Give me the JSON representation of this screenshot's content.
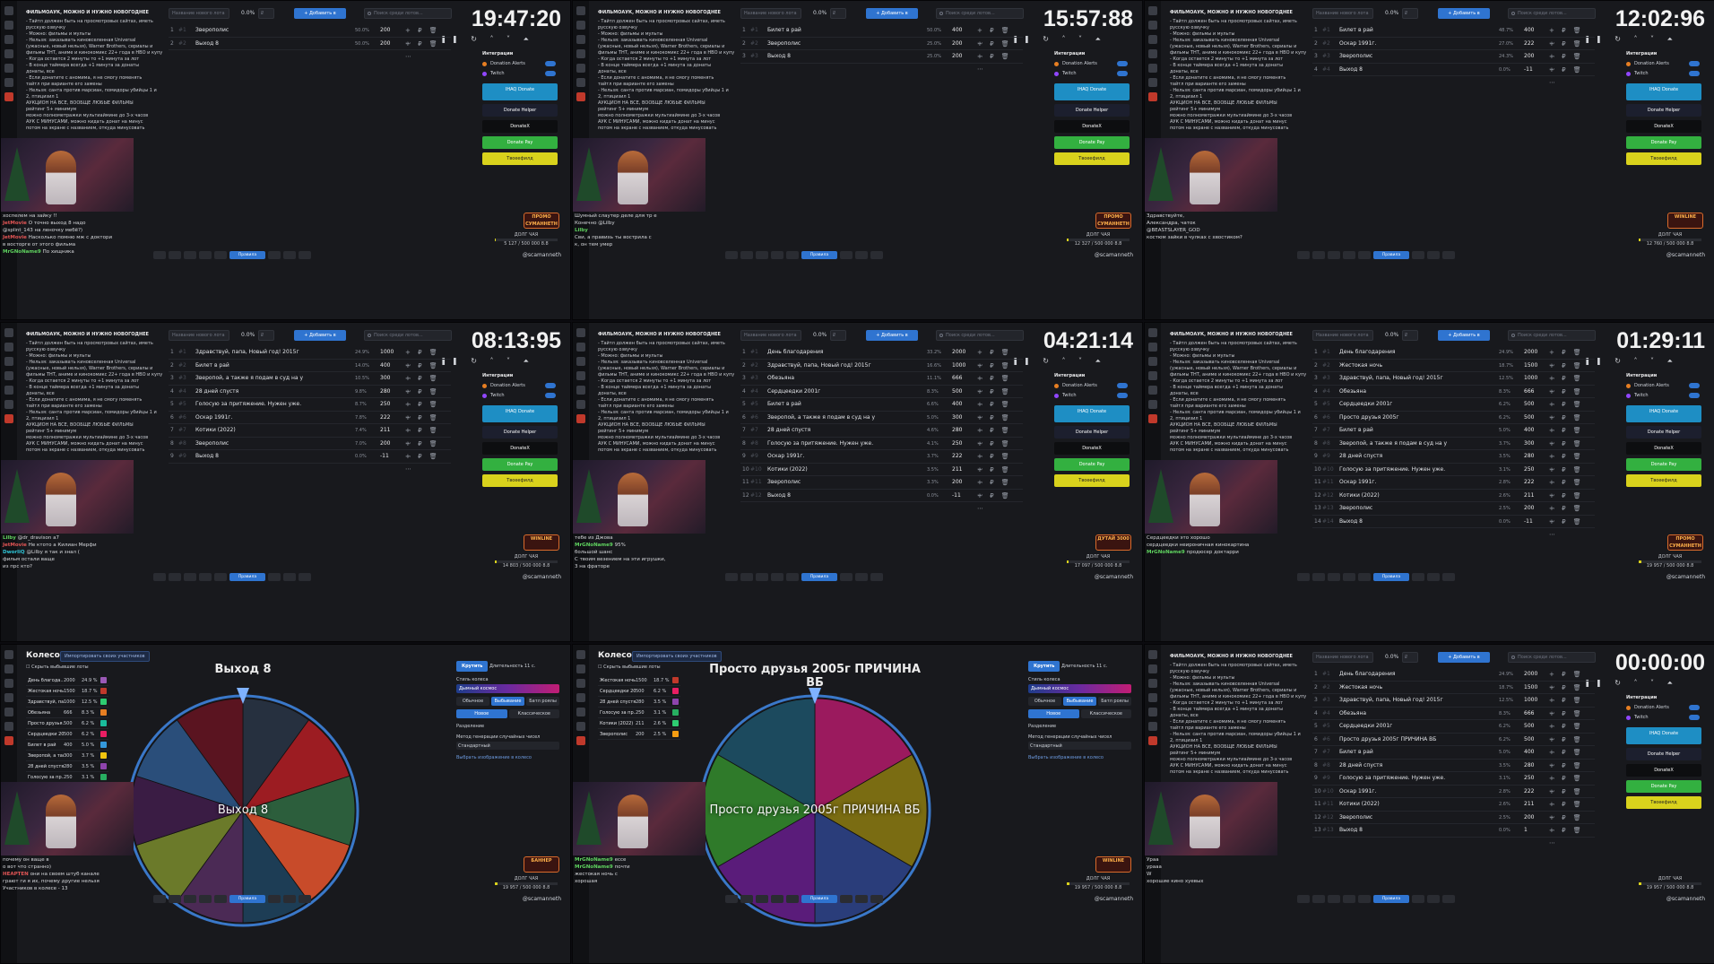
{
  "rules": {
    "title": "ФИЛЬМОАУК, МОЖНО И НУЖНО НОВОГОДНЕЕ",
    "lines": [
      "- Тайтл должен быть на просмотровых сайтах, иметь",
      "русскую озвучку",
      "- Можно: фильмы и мульты",
      "- Нельзя: заказывать киновселенная Universal",
      "(ужасные, новый нельзя), Warner Brothers, сериалы и",
      "фильмы ТНТ, аниме и кинокомикс 22+ года в НВО и купу",
      "- Когда остается 2 минуты то +1 минута за лот",
      "- В конце таймера всегда +1 минута за донаты",
      "донаты, все",
      "- Если донатите с аномима, я не смогу поменять",
      "тайтл при варианте его замены",
      "- Нельзя: санта против марсиан, помидоры убийцы 1 и",
      "2, птицизил 1",
      "АУКЦИОН НА ВСЕ, ВООБЩЕ ЛЮБЫЕ ФИЛЬМЫ",
      "рейтинг 5+ минимум",
      "можно полнометражки мультиаймине до 3-х часов",
      "АУК С МИНУСАМИ, можно кидать донат на минус",
      "потом на экране с названием, откуда минусовать"
    ]
  },
  "toolbar": {
    "lot_placeholder": "Название нового лота",
    "pct": "0.0%",
    "amount_placeholder": "₽",
    "add_label": "+ Добавить в",
    "search_placeholder": "Поиск среди лотов..."
  },
  "integrations": {
    "title": "Интеграции",
    "items": [
      "Donation Alerts",
      "Twitch"
    ],
    "buttons": [
      "IHAQ Donate",
      "Donate Helper",
      "DonateX",
      "Donate Pay",
      "Твоеефилд"
    ]
  },
  "handle": "@scamanneth",
  "panels": [
    {
      "type": "auction",
      "timer": "19:47:20",
      "lots": [
        {
          "n": "1",
          "title": "Зверополис",
          "pct": "50.0%",
          "amount": "200"
        },
        {
          "n": "2",
          "title": "Выход 8",
          "pct": "50.0%",
          "amount": "200"
        }
      ],
      "chat": [
        {
          "u": "",
          "c": "",
          "m": "хоспелем на зайку !!"
        },
        {
          "u": "JetMovie",
          "c": "r",
          "m": "О точно выход 8 надо"
        },
        {
          "u": "",
          "c": "p",
          "m": "@splint_143 на леночку мебё?)"
        },
        {
          "u": "JetMovie",
          "c": "r",
          "m": "Насколько помню мж с доктори"
        },
        {
          "u": "",
          "c": "",
          "m": "в восторге от этого фильма"
        },
        {
          "u": "MrGNoName9",
          "c": "",
          "m": "По хищника"
        }
      ],
      "promo": "ПРОМО СУМАННЕТН",
      "progress_text": "5 127 / 500 000 8.8",
      "progress_pct": 1.0
    },
    {
      "type": "auction",
      "timer": "15:57:88",
      "lots": [
        {
          "n": "1",
          "title": "Билет в рай",
          "pct": "50.0%",
          "amount": "400"
        },
        {
          "n": "2",
          "title": "Зверополис",
          "pct": "25.0%",
          "amount": "200"
        },
        {
          "n": "3",
          "title": "Выход 8",
          "pct": "25.0%",
          "amount": "200"
        }
      ],
      "chat": [
        {
          "u": "",
          "c": "",
          "m": "Шумный слаутер деле для тр е"
        },
        {
          "u": "",
          "c": "p",
          "m": "Конечно @Lilby"
        },
        {
          "u": "Lilby",
          "c": "",
          "m": ""
        },
        {
          "u": "",
          "c": "r",
          "m": "Сви, а правихь ты вострила с"
        },
        {
          "u": "",
          "c": "",
          "m": "к, он тем умер"
        }
      ],
      "promo": "ПРОМО СУМАННЕТН",
      "progress_text": "12 327 / 500 000 8.8",
      "progress_pct": 2.5
    },
    {
      "type": "auction",
      "timer": "12:02:96",
      "lots": [
        {
          "n": "1",
          "title": "Билет в рай",
          "pct": "48.7%",
          "amount": "400"
        },
        {
          "n": "2",
          "title": "Оскар 1991г.",
          "pct": "27.0%",
          "amount": "222"
        },
        {
          "n": "3",
          "title": "Зверополис",
          "pct": "24.3%",
          "amount": "200"
        },
        {
          "n": "4",
          "title": "Выход 8",
          "pct": "0.0%",
          "amount": "-11"
        }
      ],
      "chat": [
        {
          "u": "",
          "c": "",
          "m": "Здравствуйте,"
        },
        {
          "u": "",
          "c": "",
          "m": "Александра, чаток"
        },
        {
          "u": "",
          "c": "r",
          "m": "@BEASTSLAYER_GOD"
        },
        {
          "u": "",
          "c": "r",
          "m": "костюм зайки в чулках с хвостиком?"
        }
      ],
      "promo": "WINLINE",
      "progress_text": "12 760 / 500 000 8.8",
      "progress_pct": 2.6
    },
    {
      "type": "auction",
      "timer": "08:13:95",
      "lots": [
        {
          "n": "1",
          "title": "Здравствуй, папа, Новый год! 2015г",
          "pct": "24.9%",
          "amount": "1000"
        },
        {
          "n": "2",
          "title": "Билет в рай",
          "pct": "14.0%",
          "amount": "400"
        },
        {
          "n": "3",
          "title": "Зверопой, а также я подам в суд на у",
          "pct": "10.5%",
          "amount": "300"
        },
        {
          "n": "4",
          "title": "28 дней спустя",
          "pct": "9.8%",
          "amount": "280"
        },
        {
          "n": "5",
          "title": "Голосую за притяжение. Нужен уже.",
          "pct": "8.7%",
          "amount": "250"
        },
        {
          "n": "6",
          "title": "Оскар 1991г.",
          "pct": "7.8%",
          "amount": "222"
        },
        {
          "n": "7",
          "title": "Котики (2022)",
          "pct": "7.4%",
          "amount": "211"
        },
        {
          "n": "8",
          "title": "Зверополис",
          "pct": "7.0%",
          "amount": "200"
        },
        {
          "n": "9",
          "title": "Выход 8",
          "pct": "0.0%",
          "amount": "-11"
        }
      ],
      "chat": [
        {
          "u": "Lilby",
          "c": "",
          "m": "@dr_dravison а7"
        },
        {
          "u": "JetMovie",
          "c": "r",
          "m": "Не ктото а Килиан Мерфи"
        },
        {
          "u": "DworliQ",
          "c": "c",
          "m": "@Lilby я так и знал ("
        },
        {
          "u": "",
          "c": "p",
          "m": "фильм остали ваще"
        },
        {
          "u": "",
          "c": "",
          "m": "из прс кто?"
        }
      ],
      "promo": "WINLINE",
      "progress_text": "14 803 / 500 000 8.8",
      "progress_pct": 3.0
    },
    {
      "type": "auction",
      "timer": "04:21:14",
      "lots": [
        {
          "n": "1",
          "title": "День благодарения",
          "pct": "33.2%",
          "amount": "2000"
        },
        {
          "n": "2",
          "title": "Здравствуй, папа, Новый год! 2015г",
          "pct": "16.6%",
          "amount": "1000"
        },
        {
          "n": "3",
          "title": "Обезьяна",
          "pct": "11.1%",
          "amount": "666"
        },
        {
          "n": "4",
          "title": "Сердцеедки 2001г",
          "pct": "8.3%",
          "amount": "500"
        },
        {
          "n": "5",
          "title": "Билет в рай",
          "pct": "6.6%",
          "amount": "400"
        },
        {
          "n": "6",
          "title": "Зверопой, а также я подам в суд на у",
          "pct": "5.0%",
          "amount": "300"
        },
        {
          "n": "7",
          "title": "28 дней спустя",
          "pct": "4.6%",
          "amount": "280"
        },
        {
          "n": "8",
          "title": "Голосую за притяжение. Нужен уже.",
          "pct": "4.1%",
          "amount": "250"
        },
        {
          "n": "9",
          "title": "Оскар 1991г.",
          "pct": "3.7%",
          "amount": "222"
        },
        {
          "n": "10",
          "title": "Котики (2022)",
          "pct": "3.5%",
          "amount": "211"
        },
        {
          "n": "11",
          "title": "Зверополис",
          "pct": "3.3%",
          "amount": "200"
        },
        {
          "n": "12",
          "title": "Выход 8",
          "pct": "0.0%",
          "amount": "-11"
        }
      ],
      "chat": [
        {
          "u": "",
          "c": "",
          "m": "тебе из Джова"
        },
        {
          "u": "MrGNoName9",
          "c": "",
          "m": "95%"
        },
        {
          "u": "",
          "c": "",
          "m": "большой шанс"
        },
        {
          "u": "",
          "c": "p",
          "m": "С твоим везением на эти игрушки,"
        },
        {
          "u": "",
          "c": "",
          "m": "3 на фраторе"
        }
      ],
      "promo": "ДУТАЙ 3000",
      "progress_text": "17 097 / 500 000 8.8",
      "progress_pct": 3.4
    },
    {
      "type": "auction",
      "timer": "01:29:11",
      "lots": [
        {
          "n": "1",
          "title": "День благодарения",
          "pct": "24.9%",
          "amount": "2000"
        },
        {
          "n": "2",
          "title": "Жестокая ночь",
          "pct": "18.7%",
          "amount": "1500"
        },
        {
          "n": "3",
          "title": "Здравствуй, папа, Новый год! 2015г",
          "pct": "12.5%",
          "amount": "1000"
        },
        {
          "n": "4",
          "title": "Обезьяна",
          "pct": "8.3%",
          "amount": "666"
        },
        {
          "n": "5",
          "title": "Сердцеедки 2001г",
          "pct": "6.2%",
          "amount": "500"
        },
        {
          "n": "6",
          "title": "Просто друзья 2005г",
          "pct": "6.2%",
          "amount": "500"
        },
        {
          "n": "7",
          "title": "Билет в рай",
          "pct": "5.0%",
          "amount": "400"
        },
        {
          "n": "8",
          "title": "Зверопой, а также я подам в суд на у",
          "pct": "3.7%",
          "amount": "300"
        },
        {
          "n": "9",
          "title": "28 дней спустя",
          "pct": "3.5%",
          "amount": "280"
        },
        {
          "n": "10",
          "title": "Голосую за притяжение. Нужен уже.",
          "pct": "3.1%",
          "amount": "250"
        },
        {
          "n": "11",
          "title": "Оскар 1991г.",
          "pct": "2.8%",
          "amount": "222"
        },
        {
          "n": "12",
          "title": "Котики (2022)",
          "pct": "2.6%",
          "amount": "211"
        },
        {
          "n": "13",
          "title": "Зверополис",
          "pct": "2.5%",
          "amount": "200"
        },
        {
          "n": "14",
          "title": "Выход 8",
          "pct": "0.0%",
          "amount": "-11"
        }
      ],
      "chat": [
        {
          "u": "",
          "c": "",
          "m": "Сердцеедки это хорошо"
        },
        {
          "u": "",
          "c": "r",
          "m": "сердцеедки неироничная кинокартина"
        },
        {
          "u": "MrGNoName9",
          "c": "",
          "m": "продюсер доктарри"
        }
      ],
      "promo": "ПРОМО СУМАННЕТН",
      "progress_text": "19 957 / 500 000 8.8",
      "progress_pct": 4.0
    },
    {
      "type": "wheel",
      "title": "Колесо",
      "import": "Импортировать своих участников",
      "hide": "Скрыть выбывшие лоты",
      "selected": "Выход 8",
      "center": "Выход 8",
      "rows": [
        {
          "n": "День благода...",
          "a": "2000",
          "p": "24.9 %",
          "c": "#9b59b6"
        },
        {
          "n": "Жестокая ночь",
          "a": "1500",
          "p": "18.7 %",
          "c": "#c0392b"
        },
        {
          "n": "Здравствуй, па...",
          "a": "1000",
          "p": "12.5 %",
          "c": "#2ecc71"
        },
        {
          "n": "Обезьяна",
          "a": "666",
          "p": "8.3 %",
          "c": "#e67e22"
        },
        {
          "n": "Просто друзья...",
          "a": "500",
          "p": "6.2 %",
          "c": "#1abc9c"
        },
        {
          "n": "Сердцеедки 20...",
          "a": "500",
          "p": "6.2 %",
          "c": "#e91e63"
        },
        {
          "n": "Билет в рай",
          "a": "400",
          "p": "5.0 %",
          "c": "#3498db"
        },
        {
          "n": "Зверопой, а так...",
          "a": "300",
          "p": "3.7 %",
          "c": "#f1c40f"
        },
        {
          "n": "28 дней спустя",
          "a": "280",
          "p": "3.5 %",
          "c": "#8e44ad"
        },
        {
          "n": "Голосую за пр...",
          "a": "250",
          "p": "3.1 %",
          "c": "#27ae60"
        }
      ],
      "slices": [
        "#26303f",
        "#9c1c22",
        "#2c5e3c",
        "#c84b2a",
        "#1d3d55",
        "#4b2a55",
        "#6b7a2a",
        "#3a1c44",
        "#2a4e7a",
        "#5a1420"
      ],
      "settings": {
        "spin": "Крутить",
        "duration": "Длительность",
        "seconds": "11",
        "sec": "с.",
        "style": "Стиль колеса",
        "style_value": "Дымный космос",
        "modes": [
          "Обычное",
          "Выбывание",
          "Батл роялы"
        ],
        "mode_on": 1,
        "sub": [
          "Новое",
          "Классическое"
        ],
        "split": "Разделение",
        "method": "Метод генерации случайных чисел",
        "method_value": "Стандартный",
        "link": "Выбрать изображение в колесо"
      },
      "chat": [
        {
          "u": "",
          "c": "c",
          "m": "почему он ваще в"
        },
        {
          "u": "",
          "c": "",
          "m": "о вот что странно)"
        },
        {
          "u": "HEAPTEN",
          "c": "r",
          "m": "они на своем штуб канале"
        },
        {
          "u": "",
          "c": "",
          "m": "грают ги я их, почему другие нельзя"
        },
        {
          "u": "",
          "c": "",
          "m": "Участников в колесе - 13"
        }
      ],
      "promo": "БАННЕР",
      "progress_text": "19 957 / 500 000 8.8",
      "progress_pct": 4.0
    },
    {
      "type": "wheel",
      "title": "Колесо",
      "import": "Импортировать своих участников",
      "hide": "Скрыть выбывшие лоты",
      "selected": "Просто друзья 2005г ПРИЧИНА ВБ",
      "center": "Просто друзья 2005г ПРИЧИНА ВБ",
      "rows": [
        {
          "n": "Жестокая ночь",
          "a": "1500",
          "p": "18.7 %",
          "c": "#c0392b"
        },
        {
          "n": "Сердцеедки 20...",
          "a": "500",
          "p": "6.2 %",
          "c": "#e91e63"
        },
        {
          "n": "28 дней спустя",
          "a": "280",
          "p": "3.5 %",
          "c": "#8e44ad"
        },
        {
          "n": "Голосую за пр...",
          "a": "250",
          "p": "3.1 %",
          "c": "#27ae60"
        },
        {
          "n": "Котики (2022)",
          "a": "211",
          "p": "2.6 %",
          "c": "#2ecc71"
        },
        {
          "n": "Зверополис",
          "a": "200",
          "p": "2.5 %",
          "c": "#f39c12"
        }
      ],
      "slices": [
        "#9b1a5e",
        "#7a6c12",
        "#2a3d7a",
        "#5a1c7a",
        "#2f7a2a",
        "#1c4a5e"
      ],
      "settings": {
        "spin": "Крутить",
        "duration": "Длительность",
        "seconds": "11",
        "sec": "с.",
        "style": "Стиль колеса",
        "style_value": "Дымный космос",
        "modes": [
          "Обычное",
          "Выбывание",
          "Батл роялы"
        ],
        "mode_on": 1,
        "sub": [
          "Новое",
          "Классическое"
        ],
        "split": "Разделение",
        "method": "Метод генерации случайных чисел",
        "method_value": "Стандартный",
        "link": "Выбрать изображение в колесо"
      },
      "chat": [
        {
          "u": "MrGNoName9",
          "c": "",
          "m": "ессе"
        },
        {
          "u": "MrGNoName9",
          "c": "",
          "m": "почти"
        },
        {
          "u": "",
          "c": "",
          "m": "жестокая ночь с"
        },
        {
          "u": "",
          "c": "",
          "m": "хорошая"
        }
      ],
      "promo": "WINLINE",
      "progress_text": "19 957 / 500 000 8.8",
      "progress_pct": 4.0
    },
    {
      "type": "auction",
      "timer": "00:00:00",
      "lots": [
        {
          "n": "1",
          "title": "День благодарения",
          "pct": "24.9%",
          "amount": "2000"
        },
        {
          "n": "2",
          "title": "Жестокая ночь",
          "pct": "18.7%",
          "amount": "1500"
        },
        {
          "n": "3",
          "title": "Здравствуй, папа, Новый год! 2015г",
          "pct": "12.5%",
          "amount": "1000"
        },
        {
          "n": "4",
          "title": "Обезьяна",
          "pct": "8.3%",
          "amount": "666"
        },
        {
          "n": "5",
          "title": "Сердцеедки 2001г",
          "pct": "6.2%",
          "amount": "500"
        },
        {
          "n": "6",
          "title": "Просто друзья 2005г ПРИЧИНА ВБ",
          "pct": "6.2%",
          "amount": "500"
        },
        {
          "n": "7",
          "title": "Билет в рай",
          "pct": "5.0%",
          "amount": "400"
        },
        {
          "n": "8",
          "title": "28 дней спустя",
          "pct": "3.5%",
          "amount": "280"
        },
        {
          "n": "9",
          "title": "Голосую за притяжение. Нужен уже.",
          "pct": "3.1%",
          "amount": "250"
        },
        {
          "n": "10",
          "title": "Оскар 1991г.",
          "pct": "2.8%",
          "amount": "222"
        },
        {
          "n": "11",
          "title": "Котики (2022)",
          "pct": "2.6%",
          "amount": "211"
        },
        {
          "n": "12",
          "title": "Зверополис",
          "pct": "2.5%",
          "amount": "200"
        },
        {
          "n": "13",
          "title": "Выход 8",
          "pct": "0.0%",
          "amount": "1"
        }
      ],
      "chat": [
        {
          "u": "",
          "c": "",
          "m": "Ураа"
        },
        {
          "u": "",
          "c": "c",
          "m": "урааа"
        },
        {
          "u": "",
          "c": "r",
          "m": "W"
        },
        {
          "u": "",
          "c": "y",
          "m": "хорошие кино хуевых"
        }
      ],
      "promo": "",
      "progress_text": "19 957 / 500 000 8.8",
      "progress_pct": 4.0
    }
  ]
}
